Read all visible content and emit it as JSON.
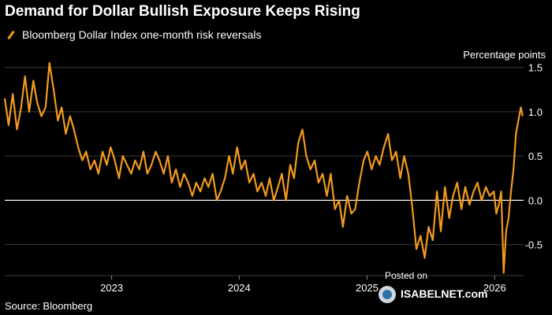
{
  "header": {
    "title": "Demand for Dollar Bullish Exposure Keeps Rising",
    "legend_label": "Bloomberg Dollar Index one-month risk reversals",
    "unit_label": "Percentage points"
  },
  "footer": {
    "source": "Source: Bloomberg"
  },
  "watermark": {
    "posted_on": "Posted on",
    "site": "ISABELNET.com"
  },
  "colors": {
    "background": "#000000",
    "series": "#f39a1f",
    "grid": "#3a3a3a",
    "zero_line": "#ffffff",
    "text": "#ffffff"
  },
  "chart_data": {
    "type": "line",
    "title": "Demand for Dollar Bullish Exposure Keeps Rising",
    "xlabel": "",
    "ylabel": "Percentage points",
    "x_tick_labels": [
      "2023",
      "2024",
      "2025",
      "2026"
    ],
    "x_tick_dates": [
      "2023-01-01",
      "2024-01-01",
      "2025-01-01",
      "2026-01-01"
    ],
    "xlim": [
      "2022-03-01",
      "2026-03-25"
    ],
    "y_ticks": [
      1.5,
      1.0,
      0.5,
      0.0,
      -0.5
    ],
    "y_tick_labels": [
      "1.5",
      "1.0",
      "0.5",
      "0.0",
      "-0.5"
    ],
    "ylim": [
      -0.85,
      1.55
    ],
    "grid": true,
    "legend_position": "top-left",
    "series": [
      {
        "name": "Bloomberg Dollar Index one-month risk reversals",
        "color": "#f39a1f",
        "x": [
          "2022-03-01",
          "2022-03-12",
          "2022-03-24",
          "2022-04-05",
          "2022-04-17",
          "2022-04-28",
          "2022-05-10",
          "2022-05-22",
          "2022-06-02",
          "2022-06-14",
          "2022-06-26",
          "2022-07-07",
          "2022-07-19",
          "2022-07-31",
          "2022-08-11",
          "2022-08-23",
          "2022-09-04",
          "2022-09-15",
          "2022-09-27",
          "2022-10-09",
          "2022-10-20",
          "2022-11-01",
          "2022-11-13",
          "2022-11-24",
          "2022-12-06",
          "2022-12-18",
          "2022-12-29",
          "2023-01-10",
          "2023-01-22",
          "2023-02-02",
          "2023-02-14",
          "2023-02-26",
          "2023-03-09",
          "2023-03-21",
          "2023-04-02",
          "2023-04-13",
          "2023-04-25",
          "2023-05-07",
          "2023-05-18",
          "2023-05-30",
          "2023-06-11",
          "2023-06-22",
          "2023-07-04",
          "2023-07-16",
          "2023-07-27",
          "2023-08-08",
          "2023-08-20",
          "2023-08-31",
          "2023-09-12",
          "2023-09-24",
          "2023-10-05",
          "2023-10-17",
          "2023-10-29",
          "2023-11-09",
          "2023-11-21",
          "2023-12-03",
          "2023-12-14",
          "2023-12-26",
          "2024-01-07",
          "2024-01-18",
          "2024-01-30",
          "2024-02-11",
          "2024-02-22",
          "2024-03-05",
          "2024-03-17",
          "2024-03-28",
          "2024-04-09",
          "2024-04-21",
          "2024-05-02",
          "2024-05-14",
          "2024-05-26",
          "2024-06-06",
          "2024-06-18",
          "2024-06-30",
          "2024-07-11",
          "2024-07-23",
          "2024-08-04",
          "2024-08-15",
          "2024-08-27",
          "2024-09-08",
          "2024-09-19",
          "2024-10-01",
          "2024-10-13",
          "2024-10-24",
          "2024-11-05",
          "2024-11-17",
          "2024-11-28",
          "2024-12-10",
          "2024-12-22",
          "2025-01-02",
          "2025-01-14",
          "2025-01-26",
          "2025-02-06",
          "2025-02-18",
          "2025-03-02",
          "2025-03-13",
          "2025-03-25",
          "2025-04-06",
          "2025-04-17",
          "2025-04-29",
          "2025-05-11",
          "2025-05-22",
          "2025-06-03",
          "2025-06-15",
          "2025-06-26",
          "2025-07-08",
          "2025-07-20",
          "2025-07-31",
          "2025-08-12",
          "2025-08-24",
          "2025-09-04",
          "2025-09-16",
          "2025-09-28",
          "2025-10-09",
          "2025-10-21",
          "2025-11-02",
          "2025-11-13",
          "2025-11-25",
          "2025-12-07",
          "2025-12-18",
          "2025-12-30",
          "2026-01-06",
          "2026-01-13",
          "2026-01-20",
          "2026-01-27",
          "2026-02-03",
          "2026-02-10",
          "2026-02-17",
          "2026-02-24",
          "2026-03-03",
          "2026-03-10",
          "2026-03-17",
          "2026-03-22"
        ],
        "values": [
          1.15,
          0.85,
          1.2,
          0.8,
          1.05,
          1.4,
          1.0,
          1.35,
          1.1,
          0.95,
          1.05,
          1.55,
          1.25,
          0.9,
          1.05,
          0.75,
          0.95,
          0.8,
          0.6,
          0.45,
          0.55,
          0.35,
          0.45,
          0.3,
          0.55,
          0.4,
          0.6,
          0.45,
          0.25,
          0.5,
          0.4,
          0.3,
          0.45,
          0.35,
          0.55,
          0.3,
          0.4,
          0.55,
          0.45,
          0.3,
          0.5,
          0.2,
          0.35,
          0.15,
          0.3,
          0.2,
          0.05,
          0.2,
          0.1,
          0.25,
          0.15,
          0.3,
          0.0,
          0.1,
          0.25,
          0.5,
          0.3,
          0.6,
          0.35,
          0.45,
          0.2,
          0.3,
          0.1,
          0.2,
          0.05,
          0.25,
          0.0,
          0.15,
          0.3,
          0.0,
          0.4,
          0.25,
          0.65,
          0.8,
          0.5,
          0.35,
          0.45,
          0.2,
          0.3,
          0.05,
          0.3,
          -0.1,
          0.0,
          -0.3,
          0.05,
          -0.15,
          -0.1,
          0.2,
          0.45,
          0.55,
          0.35,
          0.5,
          0.4,
          0.6,
          0.75,
          0.45,
          0.55,
          0.25,
          0.5,
          0.3,
          -0.1,
          -0.55,
          -0.4,
          -0.65,
          -0.3,
          -0.45,
          0.1,
          -0.35,
          0.15,
          -0.2,
          0.05,
          0.2,
          -0.1,
          0.15,
          -0.05,
          0.1,
          0.2,
          0.0,
          0.15,
          0.05,
          0.1,
          -0.15,
          -0.05,
          0.1,
          -0.82,
          -0.35,
          -0.2,
          0.1,
          0.35,
          0.75,
          0.9,
          1.05,
          0.95
        ]
      }
    ]
  }
}
